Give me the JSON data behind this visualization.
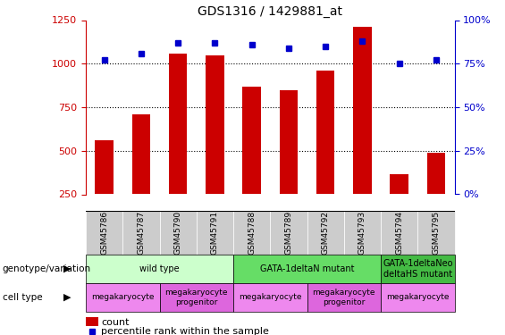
{
  "title": "GDS1316 / 1429881_at",
  "samples": [
    "GSM45786",
    "GSM45787",
    "GSM45790",
    "GSM45791",
    "GSM45788",
    "GSM45789",
    "GSM45792",
    "GSM45793",
    "GSM45794",
    "GSM45795"
  ],
  "counts": [
    560,
    710,
    1060,
    1045,
    870,
    845,
    960,
    1210,
    365,
    490
  ],
  "percentiles": [
    77,
    81,
    87,
    87,
    86,
    84,
    85,
    88,
    75,
    77
  ],
  "bar_color": "#cc0000",
  "dot_color": "#0000cc",
  "left_ylim": [
    250,
    1250
  ],
  "left_yticks": [
    250,
    500,
    750,
    1000,
    1250
  ],
  "right_ylim": [
    0,
    100
  ],
  "right_yticks": [
    0,
    25,
    50,
    75,
    100
  ],
  "right_yticklabels": [
    "0%",
    "25%",
    "50%",
    "75%",
    "100%"
  ],
  "grid_values": [
    500,
    750,
    1000
  ],
  "left_axis_color": "#cc0000",
  "right_axis_color": "#0000cc",
  "genotype_groups": [
    {
      "label": "wild type",
      "start": 0,
      "end": 4,
      "color": "#ccffcc"
    },
    {
      "label": "GATA-1deltaN mutant",
      "start": 4,
      "end": 8,
      "color": "#66dd66"
    },
    {
      "label": "GATA-1deltaNeo\ndeltaHS mutant",
      "start": 8,
      "end": 10,
      "color": "#44bb44"
    }
  ],
  "cell_type_groups": [
    {
      "label": "megakaryocyte",
      "start": 0,
      "end": 2,
      "color": "#ee88ee"
    },
    {
      "label": "megakaryocyte\nprogenitor",
      "start": 2,
      "end": 4,
      "color": "#dd66dd"
    },
    {
      "label": "megakaryocyte",
      "start": 4,
      "end": 6,
      "color": "#ee88ee"
    },
    {
      "label": "megakaryocyte\nprogenitor",
      "start": 6,
      "end": 8,
      "color": "#dd66dd"
    },
    {
      "label": "megakaryocyte",
      "start": 8,
      "end": 10,
      "color": "#ee88ee"
    }
  ],
  "legend_count_color": "#cc0000",
  "legend_pct_color": "#0000cc",
  "label_genotype": "genotype/variation",
  "label_celltype": "cell type",
  "tick_bg_color": "#cccccc"
}
